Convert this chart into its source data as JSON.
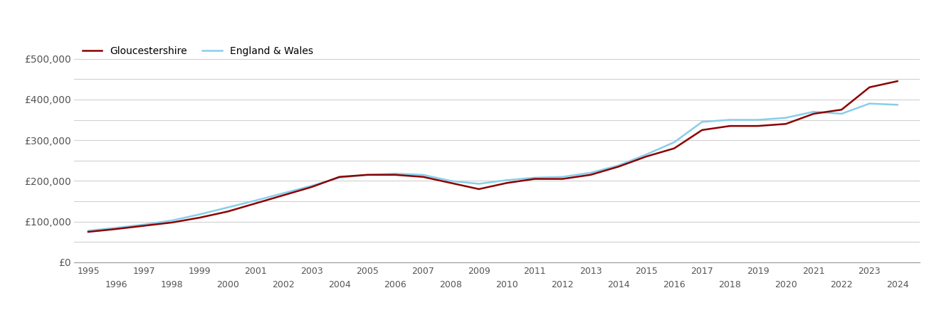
{
  "gloucestershire": {
    "years": [
      1995,
      1996,
      1997,
      1998,
      1999,
      2000,
      2001,
      2002,
      2003,
      2004,
      2005,
      2006,
      2007,
      2008,
      2009,
      2010,
      2011,
      2012,
      2013,
      2014,
      2015,
      2016,
      2017,
      2018,
      2019,
      2020,
      2021,
      2022,
      2023,
      2024
    ],
    "values": [
      75000,
      82000,
      90000,
      98000,
      110000,
      125000,
      145000,
      165000,
      185000,
      210000,
      215000,
      215000,
      210000,
      195000,
      180000,
      195000,
      205000,
      205000,
      215000,
      235000,
      260000,
      280000,
      325000,
      335000,
      335000,
      340000,
      365000,
      375000,
      430000,
      445000
    ]
  },
  "england_wales": {
    "years": [
      1995,
      1996,
      1997,
      1998,
      1999,
      2000,
      2001,
      2002,
      2003,
      2004,
      2005,
      2006,
      2007,
      2008,
      2009,
      2010,
      2011,
      2012,
      2013,
      2014,
      2015,
      2016,
      2017,
      2018,
      2019,
      2020,
      2021,
      2022,
      2023,
      2024
    ],
    "values": [
      78000,
      85000,
      93000,
      103000,
      118000,
      135000,
      152000,
      170000,
      188000,
      208000,
      215000,
      218000,
      215000,
      200000,
      193000,
      202000,
      208000,
      210000,
      220000,
      238000,
      265000,
      295000,
      345000,
      350000,
      350000,
      355000,
      370000,
      365000,
      390000,
      387000
    ]
  },
  "gloucestershire_color": "#8B0000",
  "england_wales_color": "#87CEEB",
  "background_color": "#ffffff",
  "grid_color": "#d0d0d0",
  "ylim": [
    0,
    550000
  ],
  "major_yticks": [
    0,
    100000,
    200000,
    300000,
    400000,
    500000
  ],
  "minor_yticks": [
    50000,
    150000,
    250000,
    350000,
    450000
  ],
  "ytick_labels": [
    "£0",
    "£100,000",
    "£200,000",
    "£300,000",
    "£400,000",
    "£500,000"
  ],
  "odd_years": [
    1995,
    1997,
    1999,
    2001,
    2003,
    2005,
    2007,
    2009,
    2011,
    2013,
    2015,
    2017,
    2019,
    2021,
    2023
  ],
  "even_years": [
    1996,
    1998,
    2000,
    2002,
    2004,
    2006,
    2008,
    2010,
    2012,
    2014,
    2016,
    2018,
    2020,
    2022,
    2024
  ],
  "legend_labels": [
    "Gloucestershire",
    "England & Wales"
  ],
  "line_width": 1.8,
  "tick_fontsize": 9,
  "ytick_fontsize": 10,
  "tick_color": "#555555"
}
